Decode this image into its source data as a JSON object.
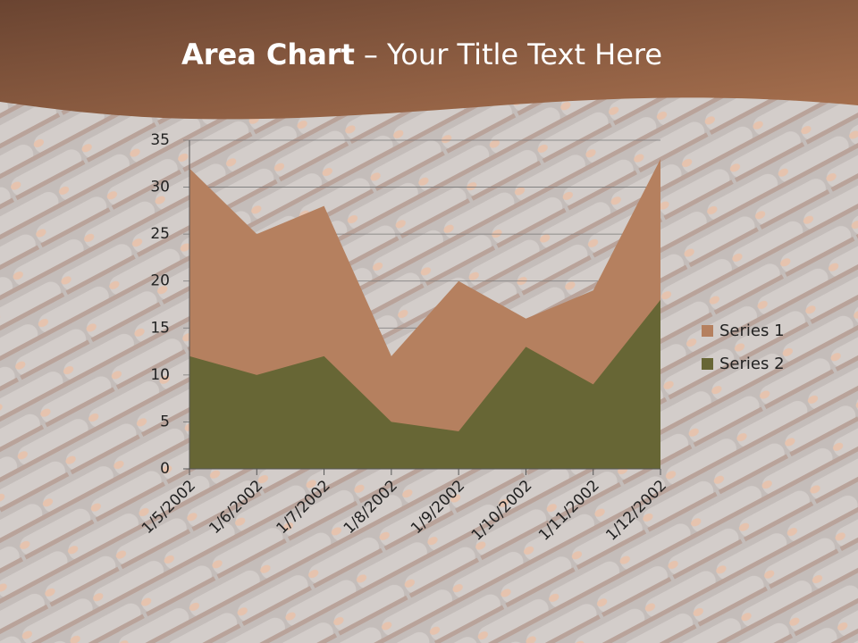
{
  "chart_data": {
    "type": "area",
    "title": [
      "Area Chart",
      "– Your Title Text Here"
    ],
    "categories": [
      "1/5/2002",
      "1/6/2002",
      "1/7/2002",
      "1/8/2002",
      "1/9/2002",
      "1/10/2002",
      "1/11/2002",
      "1/12/2002"
    ],
    "series": [
      {
        "name": "Series 1",
        "color": "#b5805f",
        "values": [
          32,
          25,
          28,
          12,
          20,
          16,
          19,
          33
        ]
      },
      {
        "name": "Series 2",
        "color": "#676635",
        "values": [
          12,
          10,
          12,
          5,
          4,
          13,
          9,
          18
        ]
      }
    ],
    "ylim": [
      0,
      35
    ],
    "yticks": [
      0,
      5,
      10,
      15,
      20,
      25,
      30,
      35
    ],
    "grid": true,
    "legend": "right"
  }
}
